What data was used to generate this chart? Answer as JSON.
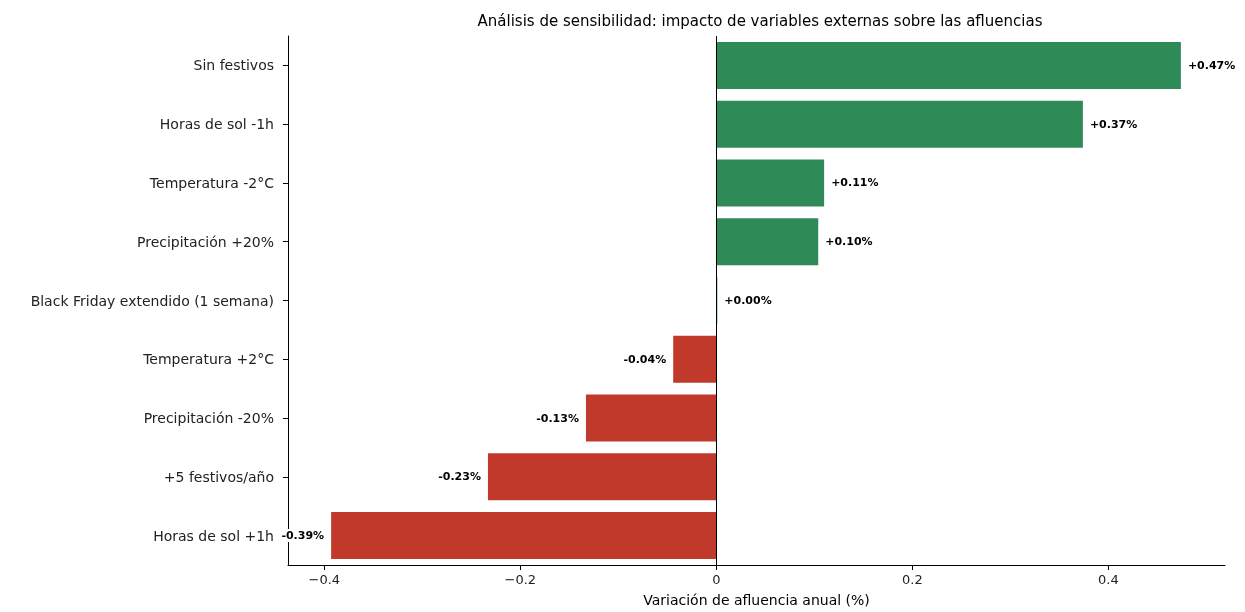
{
  "chart_data": {
    "type": "bar",
    "orientation": "horizontal",
    "title": "Análisis de sensibilidad: impacto de variables externas sobre las afluencias",
    "xlabel": "Variación de afluencia anual (%)",
    "categories": [
      "Sin festivos",
      "Horas de sol -1h",
      "Temperatura -2°C",
      "Precipitación +20%",
      "Black Friday extendido (1 semana)",
      "Temperatura +2°C",
      "Precipitación -20%",
      "+5 festivos/año",
      "Horas de sol +1h"
    ],
    "values": [
      0.474,
      0.374,
      0.11,
      0.104,
      0.001,
      -0.044,
      -0.133,
      -0.233,
      -0.393
    ],
    "colors": [
      "#2e8b57",
      "#2e8b57",
      "#2e8b57",
      "#2e8b57",
      "#2e8b57",
      "#c0392b",
      "#c0392b",
      "#c0392b",
      "#c0392b"
    ],
    "value_labels": [
      "+0.47%",
      "+0.37%",
      "+0.11%",
      "+0.10%",
      "+0.00%",
      "-0.04%",
      "-0.13%",
      "-0.23%",
      "-0.39%"
    ],
    "xlim": [
      -0.437,
      0.519
    ],
    "xticks": [
      {
        "value": -0.4,
        "label": "−0.4"
      },
      {
        "value": -0.2,
        "label": "−0.2"
      },
      0,
      0.2,
      0.4
    ],
    "ref_lines": [
      {
        "axis": "x",
        "value": 0,
        "color": "#000000"
      }
    ],
    "grid": false
  }
}
